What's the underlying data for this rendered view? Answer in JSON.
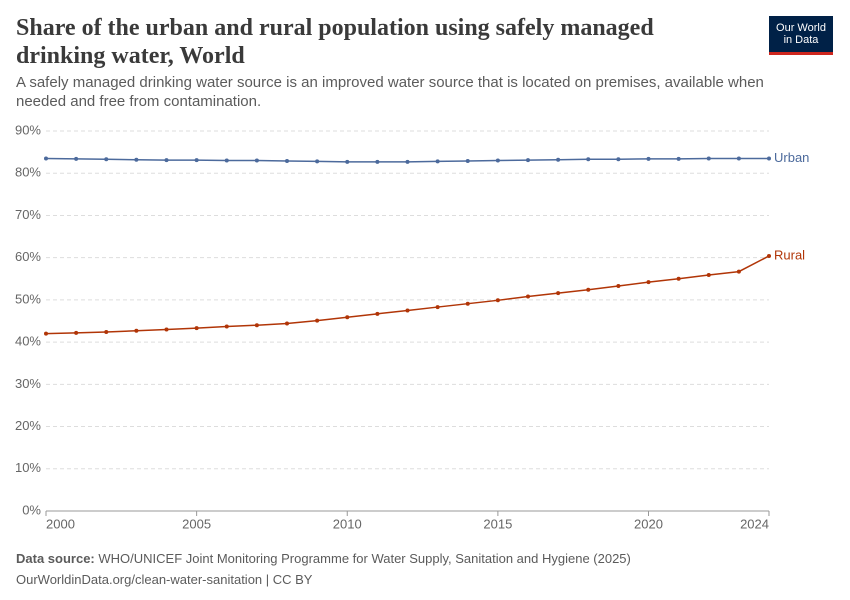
{
  "chart_data": {
    "type": "line",
    "title": "Share of the urban and rural population using safely managed drinking water, World",
    "subtitle": "A safely managed drinking water source is an improved water source that is located on premises, available when needed and free from contamination.",
    "x": [
      2000,
      2001,
      2002,
      2003,
      2004,
      2005,
      2006,
      2007,
      2008,
      2009,
      2010,
      2011,
      2012,
      2013,
      2014,
      2015,
      2016,
      2017,
      2018,
      2019,
      2020,
      2021,
      2022,
      2023,
      2024
    ],
    "series": [
      {
        "name": "Urban",
        "color": "#4c6a9c",
        "values": [
          83.5,
          83.4,
          83.3,
          83.2,
          83.1,
          83.1,
          83.0,
          83.0,
          82.9,
          82.8,
          82.7,
          82.7,
          82.7,
          82.8,
          82.9,
          83.0,
          83.1,
          83.2,
          83.3,
          83.3,
          83.4,
          83.4,
          83.5,
          83.5,
          83.5
        ]
      },
      {
        "name": "Rural",
        "color": "#b13507",
        "values": [
          42.0,
          42.2,
          42.4,
          42.7,
          43.0,
          43.3,
          43.7,
          44.0,
          44.4,
          45.1,
          45.9,
          46.7,
          47.5,
          48.3,
          49.1,
          49.9,
          50.8,
          51.6,
          52.4,
          53.3,
          54.2,
          55.0,
          55.9,
          56.7,
          60.4
        ]
      }
    ],
    "xlim": [
      2000,
      2024
    ],
    "xticks": [
      2000,
      2005,
      2010,
      2015,
      2020,
      2024
    ],
    "ylim": [
      0,
      90
    ],
    "yticks": [
      {
        "value": 0,
        "label": "0%"
      },
      {
        "value": 10,
        "label": "10%"
      },
      {
        "value": 20,
        "label": "20%"
      },
      {
        "value": 30,
        "label": "30%"
      },
      {
        "value": 40,
        "label": "40%"
      },
      {
        "value": 50,
        "label": "50%"
      },
      {
        "value": 60,
        "label": "60%"
      },
      {
        "value": 70,
        "label": "70%"
      },
      {
        "value": 80,
        "label": "80%"
      },
      {
        "value": 90,
        "label": "90%"
      }
    ],
    "grid": true
  },
  "footer": {
    "source_label": "Data source:",
    "source": "WHO/UNICEF Joint Monitoring Programme for Water Supply, Sanitation and Hygiene (2025)",
    "url": "OurWorldinData.org/clean-water-sanitation | CC BY"
  },
  "logo": {
    "line1": "Our World",
    "line2": "in Data"
  }
}
